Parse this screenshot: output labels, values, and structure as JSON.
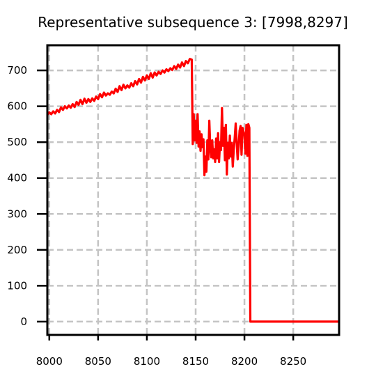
{
  "chart_data": {
    "type": "line",
    "title": "Representative subsequence 3: [7998,8297]",
    "xlabel": "",
    "ylabel": "",
    "xlim": [
      7998,
      8297
    ],
    "ylim": [
      -37,
      770
    ],
    "x_ticks": [
      8000,
      8050,
      8100,
      8150,
      8200,
      8250
    ],
    "y_ticks": [
      0,
      100,
      200,
      300,
      400,
      500,
      600,
      700
    ],
    "grid": true,
    "grid_style": "dashed",
    "legend": "none",
    "series": [
      {
        "color": "#ff0000",
        "points": [
          [
            7998,
            576
          ],
          [
            8000,
            583
          ],
          [
            8002,
            578
          ],
          [
            8004,
            586
          ],
          [
            8006,
            580
          ],
          [
            8008,
            590
          ],
          [
            8010,
            584
          ],
          [
            8012,
            597
          ],
          [
            8014,
            590
          ],
          [
            8016,
            600
          ],
          [
            8018,
            594
          ],
          [
            8020,
            602
          ],
          [
            8022,
            596
          ],
          [
            8024,
            606
          ],
          [
            8026,
            598
          ],
          [
            8028,
            612
          ],
          [
            8030,
            604
          ],
          [
            8032,
            618
          ],
          [
            8034,
            606
          ],
          [
            8036,
            621
          ],
          [
            8038,
            610
          ],
          [
            8040,
            620
          ],
          [
            8042,
            612
          ],
          [
            8044,
            622
          ],
          [
            8046,
            615
          ],
          [
            8048,
            627
          ],
          [
            8050,
            620
          ],
          [
            8052,
            634
          ],
          [
            8054,
            625
          ],
          [
            8056,
            638
          ],
          [
            8058,
            630
          ],
          [
            8060,
            636
          ],
          [
            8062,
            632
          ],
          [
            8064,
            641
          ],
          [
            8066,
            636
          ],
          [
            8068,
            649
          ],
          [
            8070,
            640
          ],
          [
            8072,
            656
          ],
          [
            8074,
            645
          ],
          [
            8076,
            660
          ],
          [
            8078,
            650
          ],
          [
            8080,
            658
          ],
          [
            8082,
            652
          ],
          [
            8084,
            664
          ],
          [
            8086,
            656
          ],
          [
            8088,
            670
          ],
          [
            8090,
            661
          ],
          [
            8092,
            676
          ],
          [
            8094,
            666
          ],
          [
            8096,
            682
          ],
          [
            8098,
            672
          ],
          [
            8100,
            686
          ],
          [
            8102,
            676
          ],
          [
            8104,
            692
          ],
          [
            8106,
            680
          ],
          [
            8108,
            694
          ],
          [
            8110,
            686
          ],
          [
            8112,
            696
          ],
          [
            8114,
            690
          ],
          [
            8116,
            700
          ],
          [
            8118,
            694
          ],
          [
            8120,
            703
          ],
          [
            8122,
            698
          ],
          [
            8124,
            706
          ],
          [
            8126,
            701
          ],
          [
            8128,
            712
          ],
          [
            8130,
            704
          ],
          [
            8132,
            716
          ],
          [
            8134,
            708
          ],
          [
            8136,
            722
          ],
          [
            8138,
            712
          ],
          [
            8140,
            726
          ],
          [
            8142,
            720
          ],
          [
            8144,
            732
          ],
          [
            8146,
            730
          ],
          [
            8147,
            495
          ],
          [
            8148,
            578
          ],
          [
            8149,
            505
          ],
          [
            8150,
            560
          ],
          [
            8151,
            498
          ],
          [
            8152,
            578
          ],
          [
            8153,
            488
          ],
          [
            8154,
            530
          ],
          [
            8155,
            476
          ],
          [
            8156,
            522
          ],
          [
            8157,
            486
          ],
          [
            8158,
            508
          ],
          [
            8159,
            408
          ],
          [
            8160,
            460
          ],
          [
            8161,
            418
          ],
          [
            8162,
            505
          ],
          [
            8163,
            452
          ],
          [
            8164,
            560
          ],
          [
            8165,
            485
          ],
          [
            8166,
            458
          ],
          [
            8167,
            505
          ],
          [
            8168,
            455
          ],
          [
            8169,
            480
          ],
          [
            8170,
            445
          ],
          [
            8171,
            510
          ],
          [
            8172,
            455
          ],
          [
            8173,
            525
          ],
          [
            8174,
            445
          ],
          [
            8175,
            500
          ],
          [
            8176,
            478
          ],
          [
            8177,
            595
          ],
          [
            8178,
            490
          ],
          [
            8179,
            540
          ],
          [
            8180,
            450
          ],
          [
            8181,
            548
          ],
          [
            8182,
            410
          ],
          [
            8183,
            498
          ],
          [
            8184,
            455
          ],
          [
            8185,
            518
          ],
          [
            8186,
            460
          ],
          [
            8187,
            498
          ],
          [
            8188,
            432
          ],
          [
            8189,
            478
          ],
          [
            8190,
            512
          ],
          [
            8191,
            552
          ],
          [
            8192,
            500
          ],
          [
            8193,
            452
          ],
          [
            8194,
            488
          ],
          [
            8195,
            532
          ],
          [
            8196,
            545
          ],
          [
            8197,
            465
          ],
          [
            8198,
            540
          ],
          [
            8199,
            530
          ],
          [
            8200,
            520
          ],
          [
            8201,
            468
          ],
          [
            8202,
            548
          ],
          [
            8203,
            462
          ],
          [
            8204,
            550
          ],
          [
            8205,
            540
          ],
          [
            8206,
            0
          ],
          [
            8230,
            0
          ],
          [
            8260,
            0
          ],
          [
            8297,
            0
          ]
        ]
      }
    ]
  }
}
